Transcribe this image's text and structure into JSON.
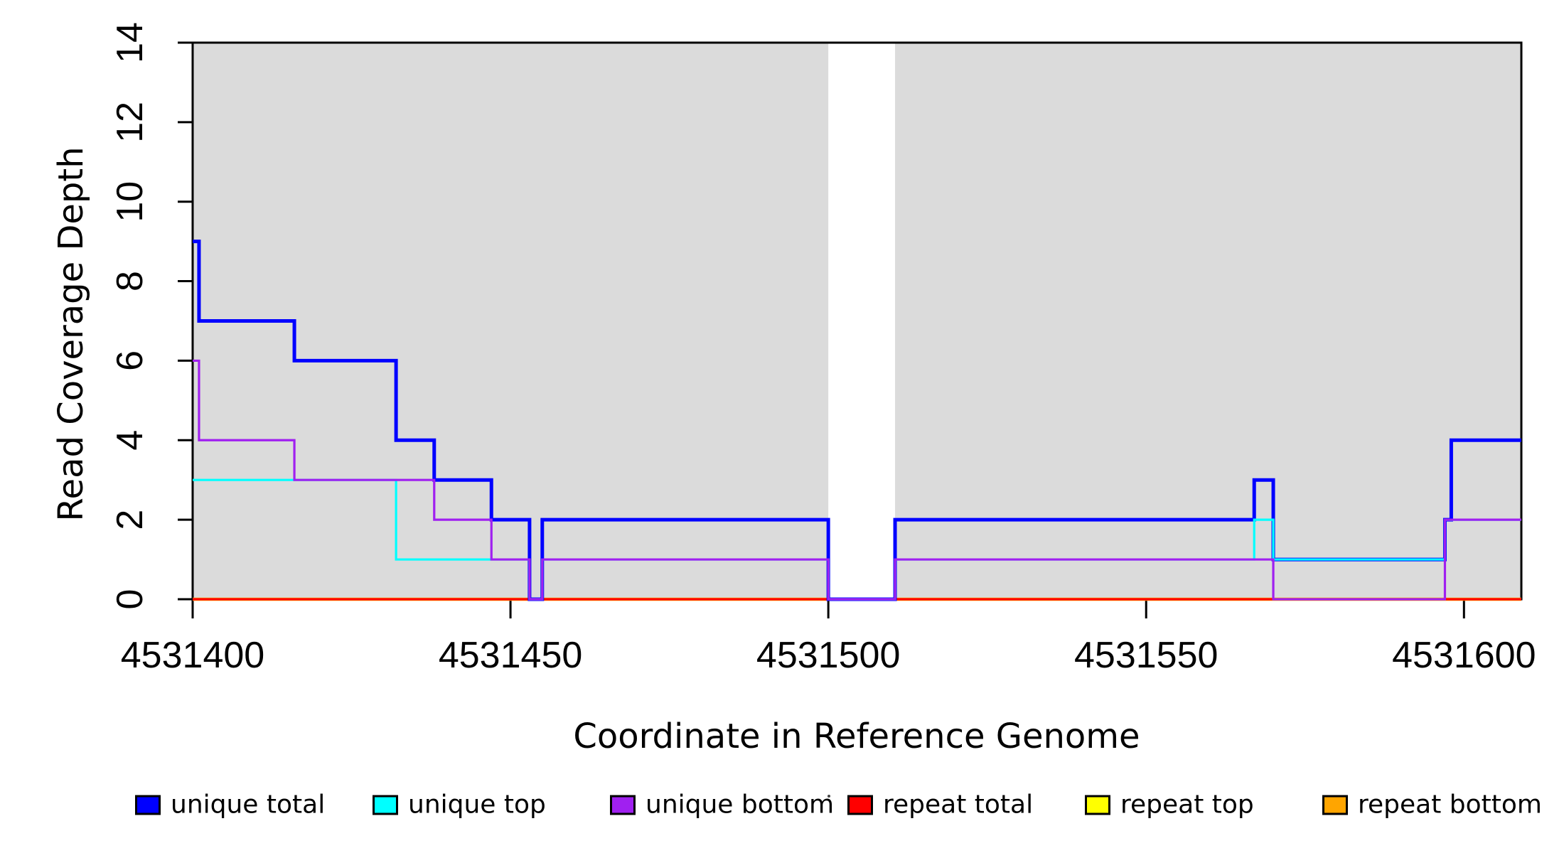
{
  "figure": {
    "panel_fill": "#DBDBDB",
    "frame_color": "#000000",
    "y_axis": {
      "title": "Read Coverage Depth",
      "ticks": [
        0,
        2,
        4,
        6,
        8,
        10,
        12,
        14
      ]
    },
    "x_axis": {
      "title": "Coordinate in Reference Genome",
      "ticks": [
        4531400,
        4531450,
        4531500,
        4531550,
        4531600
      ]
    }
  },
  "chart_data": {
    "type": "line",
    "subtype": "step-post",
    "xlabel": "Coordinate in Reference Genome",
    "ylabel": "Read Coverage Depth",
    "xlim": [
      4531400,
      4531609.2
    ],
    "ylim": [
      0,
      14
    ],
    "x_ticks": [
      4531400,
      4531450,
      4531500,
      4531550,
      4531600
    ],
    "y_ticks": [
      0,
      2,
      4,
      6,
      8,
      10,
      12,
      14
    ],
    "grid": false,
    "legend_position": "bottom",
    "background_regions": [
      {
        "x0": 4531400,
        "x1": 4531500
      },
      {
        "x0": 4531510.5,
        "x1": 4531609.2
      }
    ],
    "series": [
      {
        "name": "unique total",
        "color": "#0000FF",
        "steps": [
          [
            4531400,
            9
          ],
          [
            4531401,
            7
          ],
          [
            4531416,
            6
          ],
          [
            4531432,
            4
          ],
          [
            4531438,
            3
          ],
          [
            4531447,
            2
          ],
          [
            4531453,
            0
          ],
          [
            4531455,
            2
          ],
          [
            4531500,
            0
          ],
          [
            4531510.5,
            2
          ],
          [
            4531567,
            3
          ],
          [
            4531570,
            1
          ],
          [
            4531597,
            2
          ],
          [
            4531598,
            4
          ]
        ]
      },
      {
        "name": "unique top",
        "color": "#00FFFF",
        "steps": [
          [
            4531400,
            3
          ],
          [
            4531432,
            1
          ],
          [
            4531453,
            0
          ],
          [
            4531455,
            1
          ],
          [
            4531500,
            0
          ],
          [
            4531510.5,
            1
          ],
          [
            4531567,
            2
          ],
          [
            4531570,
            1
          ],
          [
            4531597,
            2
          ]
        ]
      },
      {
        "name": "unique bottom",
        "color": "#A020F0",
        "steps": [
          [
            4531400,
            6
          ],
          [
            4531401,
            4
          ],
          [
            4531416,
            3
          ],
          [
            4531438,
            2
          ],
          [
            4531447,
            1
          ],
          [
            4531453,
            0
          ],
          [
            4531455,
            1
          ],
          [
            4531500,
            0
          ],
          [
            4531510.5,
            1
          ],
          [
            4531570,
            0
          ],
          [
            4531597,
            2
          ]
        ]
      },
      {
        "name": "repeat total",
        "color": "#FF0000",
        "steps": [
          [
            4531400,
            0
          ]
        ]
      },
      {
        "name": "repeat top",
        "color": "#FFFF00",
        "steps": [
          [
            4531400,
            0
          ]
        ]
      },
      {
        "name": "repeat bottom",
        "color": "#FFA500",
        "steps": [
          [
            4531400,
            0
          ]
        ]
      }
    ],
    "legend": [
      "unique total",
      "unique top",
      "unique bottom",
      "repeat total",
      "repeat top",
      "repeat bottom"
    ]
  }
}
